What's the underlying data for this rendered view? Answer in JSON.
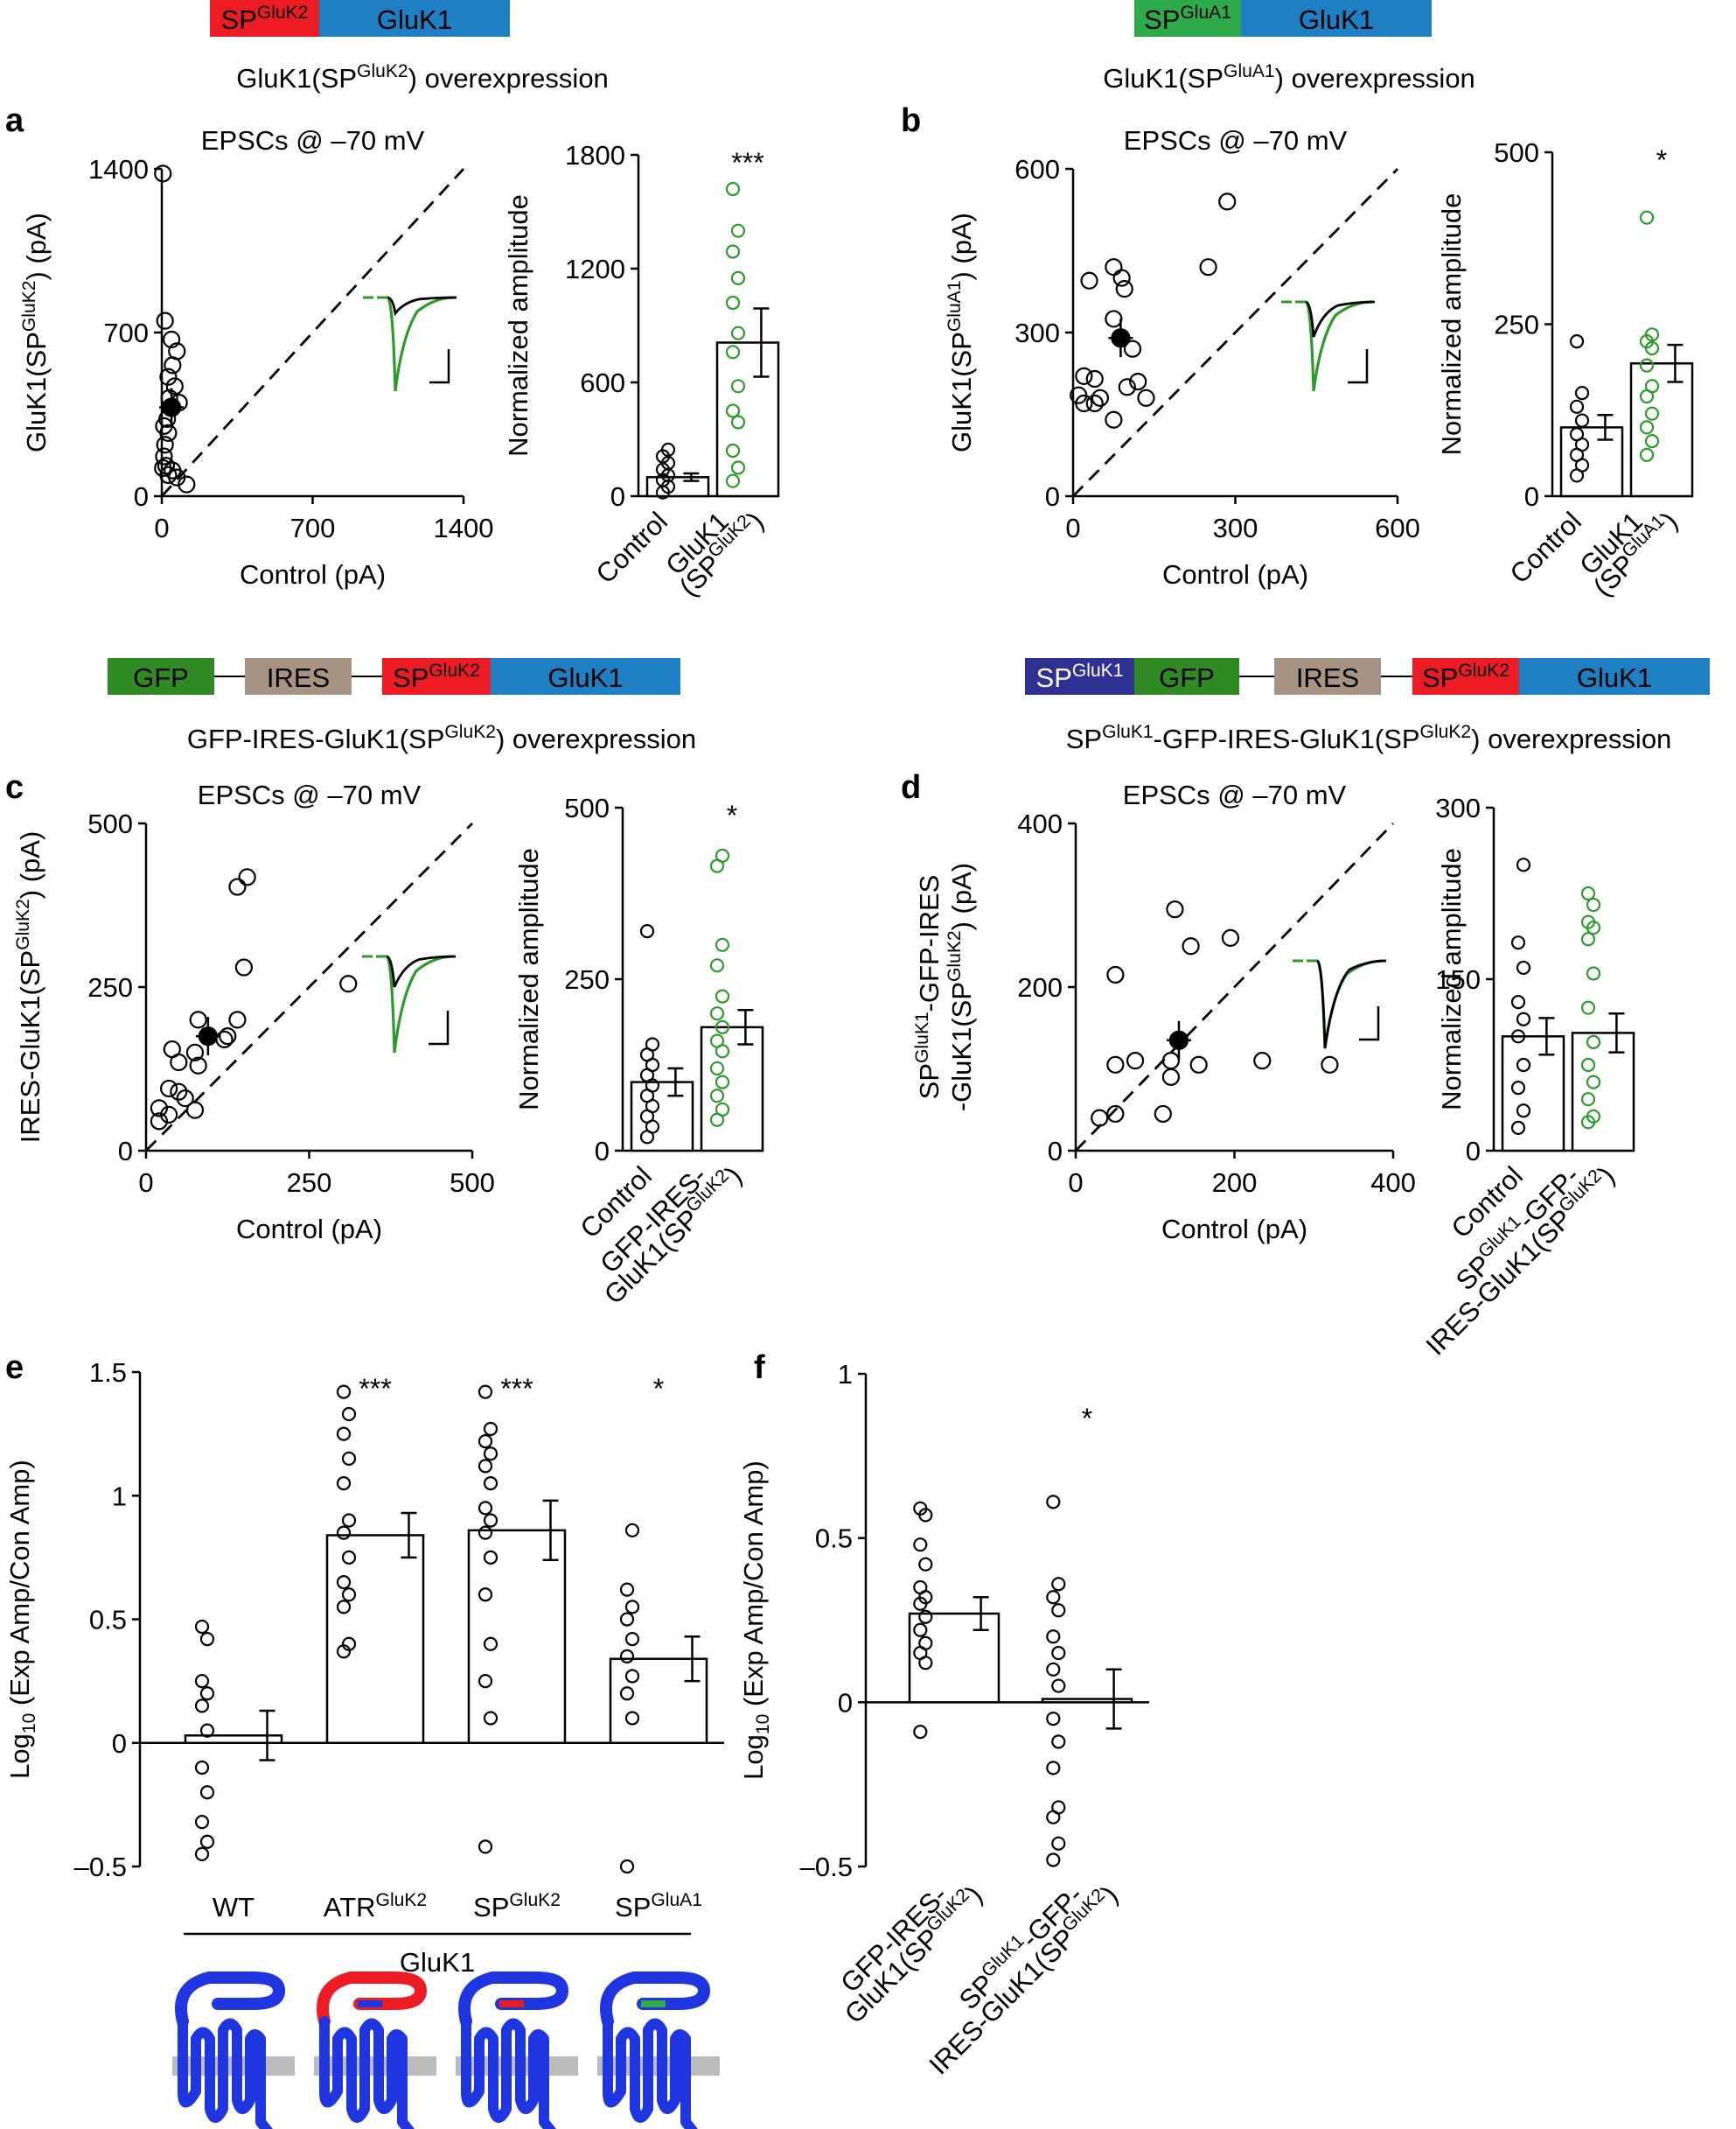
{
  "colors": {
    "gluk2": "#ed1c24",
    "gluk1": "#1f7fc3",
    "glua1": "#2eaa4a",
    "gfp": "#2f8a24",
    "ires": "#a69383",
    "spgluk1": "#2e3192",
    "green_points": "#2c9b2c",
    "protein_blue": "#1f35e0",
    "membrane": "#bbbbbb"
  },
  "labels": {
    "sp": "SP",
    "gluk2": "GluK2",
    "glua1": "GluA1",
    "gluk1sup": "GluK1",
    "gluk1": "GluK1",
    "gfp": "GFP",
    "ires": "IRES",
    "overexpression": "overexpression",
    "epscs": "EPSCs @ –70 mV",
    "control_pa": "Control (pA)",
    "control": "Control",
    "norm_amp": "Normalized amplitude",
    "atr": "ATR",
    "wt": "WT",
    "log_label": "Log",
    "log_sub": "10",
    "log_rest": " (Exp Amp/Con Amp)",
    "ylabel_a": "GluK1(SP",
    "ylabel_c": "IRES-GluK1(SP",
    "ylabel_d1": "-GFP-IRES",
    "ylabel_d2": "-GluK1(SP",
    "pa_suffix": ") (pA)",
    "title_gfp_ires": "GFP-IRES-GluK1(SP",
    "title_gluk1_prefix": "GluK1(SP",
    "close_paren": ")",
    "gfp_ires_a": "GFP-IRES-",
    "gfp_ires_b": "GluK1(SP",
    "sp_gfp_a": "-GFP-",
    "sp_gfp_b": "IRES-GluK1(SP",
    "gluk1_open": "GluK1",
    "paren_sp": "(SP"
  },
  "panels": [
    "a",
    "b",
    "c",
    "d",
    "e",
    "f"
  ],
  "chart_data": [
    {
      "panel": "a",
      "type": "scatter",
      "title": "EPSCs @ –70 mV",
      "xlabel": "Control (pA)",
      "ylabel": "GluK1(SP GluK2) (pA)",
      "xlim": [
        0,
        1400
      ],
      "ylim": [
        0,
        1400
      ],
      "xticks": [
        0,
        700,
        1400
      ],
      "yticks": [
        0,
        700,
        1400
      ],
      "points": [
        [
          5,
          1380
        ],
        [
          15,
          750
        ],
        [
          45,
          670
        ],
        [
          70,
          620
        ],
        [
          50,
          560
        ],
        [
          30,
          510
        ],
        [
          60,
          470
        ],
        [
          35,
          420
        ],
        [
          80,
          400
        ],
        [
          45,
          380
        ],
        [
          25,
          330
        ],
        [
          10,
          300
        ],
        [
          30,
          270
        ],
        [
          15,
          220
        ],
        [
          10,
          170
        ],
        [
          20,
          130
        ],
        [
          5,
          120
        ],
        [
          50,
          110
        ],
        [
          30,
          90
        ],
        [
          70,
          80
        ],
        [
          115,
          50
        ]
      ],
      "mean": [
        45,
        380
      ]
    },
    {
      "panel": "a",
      "type": "bar",
      "ylabel": "Normalized amplitude",
      "categories": [
        "Control",
        "GluK1 (SP GluK2)"
      ],
      "values": [
        100,
        810
      ],
      "errors": [
        20,
        180
      ],
      "ylim": [
        0,
        1800
      ],
      "yticks": [
        0,
        600,
        1200,
        1800
      ],
      "significance": "***",
      "points": [
        [
          20,
          50,
          85,
          110,
          140,
          175,
          210,
          245
        ],
        [
          80,
          150,
          240,
          390,
          450,
          580,
          760,
          860,
          1020,
          1150,
          1290,
          1400,
          1620
        ]
      ]
    },
    {
      "panel": "b",
      "type": "scatter",
      "title": "EPSCs @ –70 mV",
      "xlabel": "Control (pA)",
      "ylabel": "GluK1(SP GluA1) (pA)",
      "xlim": [
        0,
        600
      ],
      "ylim": [
        0,
        600
      ],
      "xticks": [
        0,
        300,
        600
      ],
      "yticks": [
        0,
        300,
        600
      ],
      "points": [
        [
          285,
          540
        ],
        [
          250,
          420
        ],
        [
          75,
          420
        ],
        [
          90,
          400
        ],
        [
          30,
          395
        ],
        [
          95,
          380
        ],
        [
          75,
          325
        ],
        [
          110,
          270
        ],
        [
          20,
          220
        ],
        [
          40,
          215
        ],
        [
          120,
          210
        ],
        [
          50,
          180
        ],
        [
          10,
          185
        ],
        [
          20,
          170
        ],
        [
          40,
          170
        ],
        [
          135,
          180
        ],
        [
          75,
          140
        ],
        [
          100,
          200
        ]
      ],
      "mean": [
        88,
        290
      ]
    },
    {
      "panel": "b",
      "type": "bar",
      "ylabel": "Normalized amplitude",
      "categories": [
        "Control",
        "GluK1 (SP GluA1)"
      ],
      "values": [
        100,
        193
      ],
      "errors": [
        18,
        27
      ],
      "ylim": [
        0,
        500
      ],
      "yticks": [
        0,
        250,
        500
      ],
      "significance": "*",
      "points": [
        [
          30,
          45,
          60,
          75,
          90,
          110,
          130,
          150,
          225
        ],
        [
          60,
          80,
          100,
          120,
          145,
          160,
          190,
          215,
          225,
          235,
          405
        ]
      ]
    },
    {
      "panel": "c",
      "type": "scatter",
      "title": "EPSCs @ –70 mV",
      "xlabel": "Control (pA)",
      "ylabel": "IRES-GluK1(SP GluK2) (pA)",
      "xlim": [
        0,
        500
      ],
      "ylim": [
        0,
        500
      ],
      "xticks": [
        0,
        250,
        500
      ],
      "yticks": [
        0,
        250,
        500
      ],
      "points": [
        [
          155,
          418
        ],
        [
          140,
          403
        ],
        [
          150,
          280
        ],
        [
          310,
          255
        ],
        [
          80,
          200
        ],
        [
          140,
          200
        ],
        [
          120,
          170
        ],
        [
          125,
          175
        ],
        [
          75,
          150
        ],
        [
          40,
          155
        ],
        [
          50,
          135
        ],
        [
          80,
          130
        ],
        [
          35,
          95
        ],
        [
          50,
          90
        ],
        [
          60,
          80
        ],
        [
          20,
          65
        ],
        [
          75,
          62
        ],
        [
          35,
          55
        ],
        [
          20,
          45
        ]
      ],
      "mean": [
        95,
        175
      ]
    },
    {
      "panel": "c",
      "type": "bar",
      "ylabel": "Normalized amplitude",
      "categories": [
        "Control",
        "GFP-IRES-GluK1(SP GluK2)"
      ],
      "values": [
        100,
        180
      ],
      "errors": [
        20,
        25
      ],
      "ylim": [
        0,
        500
      ],
      "yticks": [
        0,
        250,
        500
      ],
      "significance": "*",
      "points": [
        [
          20,
          35,
          50,
          65,
          80,
          95,
          110,
          125,
          140,
          155,
          320
        ],
        [
          45,
          60,
          80,
          100,
          120,
          145,
          160,
          180,
          200,
          225,
          270,
          300,
          415,
          430
        ]
      ]
    },
    {
      "panel": "d",
      "type": "scatter",
      "title": "EPSCs @ –70 mV",
      "xlabel": "Control (pA)",
      "ylabel": "SP GluK1-GFP-IRES-GluK1(SP GluK2) (pA)",
      "xlim": [
        0,
        400
      ],
      "ylim": [
        0,
        400
      ],
      "xticks": [
        0,
        200,
        400
      ],
      "yticks": [
        0,
        200,
        400
      ],
      "points": [
        [
          125,
          295
        ],
        [
          145,
          250
        ],
        [
          195,
          260
        ],
        [
          50,
          215
        ],
        [
          50,
          105
        ],
        [
          75,
          110
        ],
        [
          120,
          110
        ],
        [
          155,
          105
        ],
        [
          235,
          110
        ],
        [
          320,
          105
        ],
        [
          120,
          90
        ],
        [
          110,
          45
        ],
        [
          30,
          40
        ],
        [
          50,
          45
        ]
      ],
      "mean": [
        130,
        135
      ]
    },
    {
      "panel": "d",
      "type": "bar",
      "ylabel": "Normalized amplitude",
      "categories": [
        "Control",
        "SP GluK1-GFP-IRES-GluK1(SP GluK2)"
      ],
      "values": [
        100,
        103
      ],
      "errors": [
        16,
        17
      ],
      "ylim": [
        0,
        300
      ],
      "yticks": [
        0,
        150,
        300
      ],
      "significance": "",
      "points": [
        [
          20,
          35,
          55,
          75,
          100,
          115,
          130,
          160,
          182,
          250
        ],
        [
          25,
          30,
          45,
          60,
          75,
          95,
          125,
          155,
          185,
          195,
          200,
          215,
          225
        ]
      ]
    },
    {
      "panel": "e",
      "type": "bar",
      "ylabel": "Log10 (Exp Amp/Con Amp)",
      "categories": [
        "WT",
        "ATR GluK2",
        "SP GluK2",
        "SP GluA1"
      ],
      "group_label": "GluK1",
      "values": [
        0.03,
        0.84,
        0.86,
        0.34
      ],
      "errors": [
        0.1,
        0.09,
        0.12,
        0.09
      ],
      "ylim": [
        -0.5,
        1.5
      ],
      "yticks": [
        -0.5,
        0,
        0.5,
        1,
        1.5
      ],
      "significance": [
        "",
        "***",
        "***",
        "*"
      ],
      "points": [
        [
          -0.45,
          -0.4,
          -0.32,
          -0.2,
          -0.1,
          0.05,
          0.15,
          0.2,
          0.25,
          0.42,
          0.47
        ],
        [
          0.37,
          0.4,
          0.55,
          0.6,
          0.65,
          0.75,
          0.85,
          0.9,
          1.05,
          1.15,
          1.25,
          1.33,
          1.42
        ],
        [
          -0.42,
          0.1,
          0.25,
          0.4,
          0.6,
          0.75,
          0.85,
          0.9,
          0.95,
          1.05,
          1.12,
          1.17,
          1.22,
          1.27,
          1.42
        ],
        [
          -0.5,
          0.1,
          0.2,
          0.27,
          0.35,
          0.42,
          0.5,
          0.55,
          0.62,
          0.86
        ]
      ]
    },
    {
      "panel": "f",
      "type": "bar",
      "ylabel": "Log10 (Exp Amp/Con Amp)",
      "categories": [
        "GFP-IRES-GluK1(SP GluK2)",
        "SP GluK1-GFP-IRES-GluK1(SP GluK2)"
      ],
      "values": [
        0.27,
        0.01
      ],
      "errors": [
        0.05,
        0.09
      ],
      "ylim": [
        -0.5,
        1
      ],
      "yticks": [
        -0.5,
        0,
        0.5,
        1
      ],
      "significance": [
        "",
        "*"
      ],
      "points": [
        [
          -0.09,
          0.12,
          0.15,
          0.18,
          0.22,
          0.26,
          0.3,
          0.32,
          0.35,
          0.42,
          0.48,
          0.57,
          0.59
        ],
        [
          -0.48,
          -0.43,
          -0.35,
          -0.32,
          -0.2,
          -0.12,
          -0.05,
          0.05,
          0.1,
          0.15,
          0.2,
          0.28,
          0.32,
          0.36,
          0.61
        ]
      ]
    }
  ]
}
